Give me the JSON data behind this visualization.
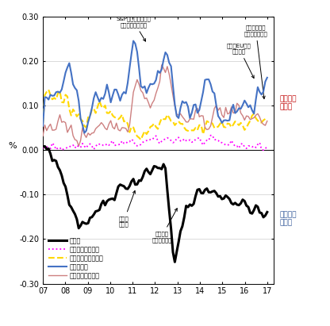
{
  "title": "",
  "xlabel": "",
  "ylabel": "%",
  "xlim": [
    2007,
    2017.3
  ],
  "ylim": [
    -0.3,
    0.3
  ],
  "yticks": [
    -0.3,
    -0.2,
    -0.1,
    0.0,
    0.1,
    0.2,
    0.3
  ],
  "xticks": [
    2007,
    2008,
    2009,
    2010,
    2011,
    2012,
    2013,
    2014,
    2015,
    2016,
    2017
  ],
  "xticklabels": [
    "07",
    "08",
    "09",
    "10",
    "11",
    "12",
    "13",
    "14",
    "15",
    "16",
    "17"
  ],
  "legend_labels": [
    "日本円",
    "オフショア人民元",
    "インドネシアルピア",
    "韓国ウォン",
    "シンガポールドル"
  ],
  "line_colors": [
    "black",
    "#ff00ff",
    "#ffd700",
    "#4472c4",
    "#cd8080"
  ],
  "line_styles": [
    "-",
    ":",
    "--",
    "-",
    "-"
  ],
  "line_widths": [
    2.2,
    1.3,
    1.5,
    1.5,
    1.0
  ],
  "label_weak": "脱弱通貨\nの傾向",
  "label_safe": "避難通貨\nの傾向",
  "background_color": "white"
}
